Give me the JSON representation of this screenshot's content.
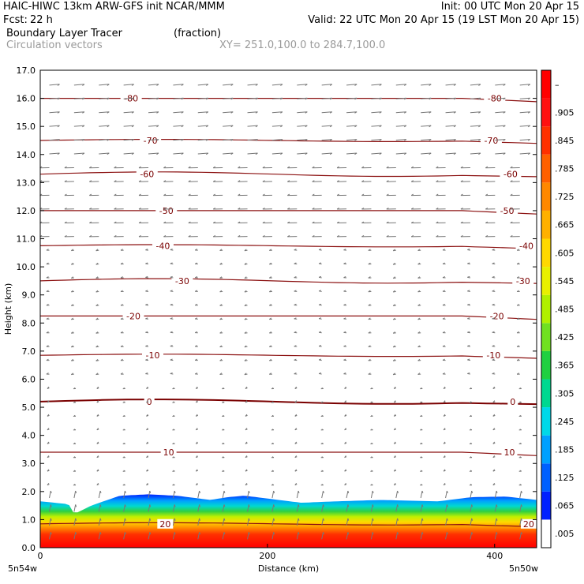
{
  "header": {
    "line1_left": "HAIC-HIWC 13km ARW-GFS init   NCAR/MMM",
    "line1_right": "Init: 00 UTC Mon 20 Apr 15",
    "fcst_label": "Fcst:",
    "fcst_value": "22 h",
    "valid": "Valid: 22 UTC Mon 20 Apr 15 (19 LST Mon 20 Apr 15)",
    "field_name": "Boundary Layer Tracer",
    "field_units": "(fraction)",
    "vector_name": "Circulation vectors",
    "xy_range": "XY= 251.0,100.0 to 284.7,100.0"
  },
  "chart_data": {
    "type": "heatmap",
    "ylabel": "Height (km)",
    "xlabel": "Distance (km)",
    "x_start_label": "5n54w",
    "x_end_label": "5n50w",
    "xlim": [
      0,
      437
    ],
    "ylim": [
      0,
      17
    ],
    "x_ticks": [
      0,
      200,
      400
    ],
    "y_ticks": [
      "0.0",
      "1.0",
      "2.0",
      "3.0",
      "4.0",
      "5.0",
      "6.0",
      "7.0",
      "8.0",
      "9.0",
      "10.0",
      "11.0",
      "12.0",
      "13.0",
      "14.0",
      "15.0",
      "16.0",
      "17.0"
    ],
    "colorbar": {
      "labels": [
        ".005",
        ".065",
        ".125",
        ".185",
        ".245",
        ".305",
        ".365",
        ".425",
        ".485",
        ".545",
        ".605",
        ".665",
        ".725",
        ".785",
        ".845",
        ".905",
        "–"
      ],
      "colors": [
        "#ffffff",
        "#0020ff",
        "#0060ff",
        "#00a0ff",
        "#00d8e8",
        "#00d890",
        "#20d040",
        "#70e020",
        "#b0f000",
        "#e8f000",
        "#ffd800",
        "#ffb000",
        "#ff8800",
        "#ff6000",
        "#ff3000",
        "#ff1010",
        "#ff0000"
      ]
    },
    "isotherms": [
      {
        "label": "-80",
        "y": 16.0
      },
      {
        "label": "-70",
        "y": 14.5
      },
      {
        "label": "-60",
        "y": 13.3
      },
      {
        "label": "-50",
        "y": 12.0
      },
      {
        "label": "-40",
        "y": 10.75
      },
      {
        "label": "-30",
        "y": 9.5
      },
      {
        "label": "-20",
        "y": 8.25
      },
      {
        "label": "-10",
        "y": 6.85
      },
      {
        "label": "0",
        "y": 5.2
      },
      {
        "label": "10",
        "y": 3.4
      },
      {
        "label": "20",
        "y": 0.85
      }
    ],
    "boundary_layer_top_km": [
      [
        0,
        1.65
      ],
      [
        25,
        1.55
      ],
      [
        30,
        1.2
      ],
      [
        45,
        1.5
      ],
      [
        70,
        1.85
      ],
      [
        95,
        1.9
      ],
      [
        120,
        1.85
      ],
      [
        150,
        1.7
      ],
      [
        165,
        1.8
      ],
      [
        180,
        1.85
      ],
      [
        200,
        1.75
      ],
      [
        230,
        1.6
      ],
      [
        260,
        1.65
      ],
      [
        300,
        1.7
      ],
      [
        350,
        1.65
      ],
      [
        380,
        1.8
      ],
      [
        410,
        1.82
      ],
      [
        437,
        1.7
      ]
    ]
  }
}
